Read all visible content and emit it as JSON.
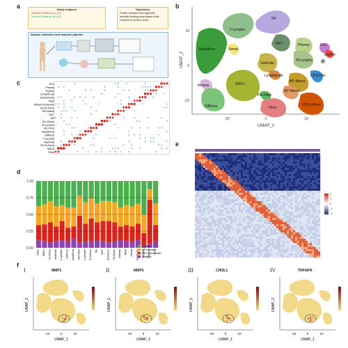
{
  "panels": {
    "a": {
      "label": "a",
      "box_study": "Study subjects",
      "study_lines": [
        "Diabetic Patients (n=17)",
        "Control Subjects (n=12)"
      ],
      "box_objectives": "Objectives",
      "objectives_lines": [
        "Profile cellular heterogeneity",
        "Identify healing-associated cells",
        "Confirm at protein level"
      ],
      "box_pipeline": "Sample collection and analysis pipeline"
    },
    "b": {
      "label": "b",
      "xlabel": "UMAP_1",
      "ylabel": "UMAP_2",
      "xticks": [
        "-10",
        "0",
        "10"
      ],
      "yticks": [
        "10",
        "0",
        "-10"
      ],
      "clusters": [
        "NK",
        "T-Lympho",
        "NKT",
        "Plasma",
        "B-Lympho",
        "DCs",
        "Erythro",
        "BasalKera",
        "Sweat",
        "VasEndo",
        "LymphEndo",
        "CD16-Mo",
        "M1-Macro",
        "M2-Macro",
        "Melano",
        "SMCs",
        "HE-Fibro",
        "Fibro",
        "DiffKera",
        "CD14-Mono",
        "Mast"
      ]
    },
    "c": {
      "label": "c",
      "rows": [
        "DCs",
        "Plasma",
        "Erythro",
        "LymphEndo",
        "Sweat/Seba",
        "Mast",
        "Melano/Schwann",
        "CD16-Mono",
        "M2-Macro",
        "NKT",
        "NK",
        "M1-Macro",
        "B-Lympho",
        "HE-Fibro",
        "BasalKera",
        "DiffKera",
        "T-Lympho",
        "VasEndo",
        "CD14-Mono",
        "SMCs",
        "Fibro"
      ]
    },
    "d": {
      "label": "d",
      "yticks": [
        "1.00",
        "0.75",
        "0.50",
        "0.25",
        "0.00"
      ],
      "legend": [
        "Control",
        "DFU-Healer",
        "DFU-Non-healer",
        "Diabetic"
      ],
      "legend_colors": [
        "#4caf50",
        "#f5a623",
        "#d9261c",
        "#8e44ad"
      ],
      "categories": [
        "Fibro",
        "SMCs",
        "CD14-Mono",
        "VasEndo",
        "T-Lympho",
        "DiffKera",
        "BasalKera",
        "HE-Fibro",
        "B-Lympho",
        "M1-Macro",
        "NK",
        "NKT",
        "M2-Macro",
        "CD16-Mono",
        "Melano",
        "Mast",
        "Sweat",
        "LymphEndo",
        "Erythro",
        "Plasma",
        "DCs"
      ]
    },
    "e": {
      "label": "e",
      "legend_ticks": [
        "2",
        "1",
        "0",
        "-1",
        "-2"
      ]
    },
    "f": {
      "label": "f",
      "subpanels": [
        {
          "num": "I",
          "gene": "MMP1"
        },
        {
          "num": "II",
          "gene": "MMP3"
        },
        {
          "num": "III",
          "gene": "CHI3L1"
        },
        {
          "num": "IV",
          "gene": "TNFAIP6"
        }
      ],
      "xlabel": "UMAP_1",
      "ylabel": "UMAP_2",
      "xticks": [
        "-10",
        "0",
        "10"
      ]
    }
  },
  "colors": {
    "heat_high": "#d9261c",
    "heat_low": "#1f2e7a",
    "feature_base": "#f2d98a",
    "feature_high": "#7a0b0b"
  }
}
